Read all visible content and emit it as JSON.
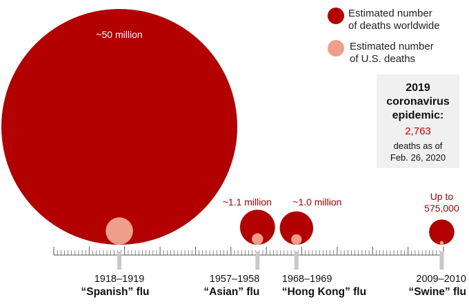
{
  "chart_data": {
    "type": "bubble-timeline",
    "x_axis": {
      "range": [
        1900,
        2010
      ],
      "minor_tick_every_years": 1
    },
    "colors": {
      "worldwide": "#b30000",
      "us": "#ee9e8a",
      "box_bg": "#f0f0f0",
      "axis": "#555555",
      "marker": "#c8c8c8"
    },
    "legend": [
      {
        "label_line1": "Estimated number",
        "label_line2": "of deaths worldwide",
        "color": "#b30000"
      },
      {
        "label_line1": "Estimated number",
        "label_line2": "of U.S. deaths",
        "color": "#ee9e8a"
      }
    ],
    "legend_placement": "top-right",
    "pandemics": [
      {
        "years": "1918–1919",
        "name": "“Spanish” flu",
        "mid_year": 1918.5,
        "worldwide": 50000000,
        "us": 675000,
        "label_line1": "~50 million",
        "label_line2": ""
      },
      {
        "years": "1957–1958",
        "name": "“Asian” flu",
        "mid_year": 1957.5,
        "worldwide": 1100000,
        "us": 116000,
        "label_line1": "~1.1 million",
        "label_line2": ""
      },
      {
        "years": "1968–1969",
        "name": "“Hong Kong” flu",
        "mid_year": 1968.5,
        "worldwide": 1000000,
        "us": 100000,
        "label_line1": "~1.0 million",
        "label_line2": ""
      },
      {
        "years": "2009–2010",
        "name": "“Swine” flu",
        "mid_year": 2009.5,
        "worldwide": 575000,
        "us": 12469,
        "label_line1": "Up to",
        "label_line2": "575,000"
      }
    ]
  },
  "callout": {
    "title_line1": "2019",
    "title_line2": "coronavirus",
    "title_line3": "epidemic:",
    "value": "2,763",
    "note_line1": "deaths as of",
    "note_line2": "Feb. 26, 2020"
  }
}
